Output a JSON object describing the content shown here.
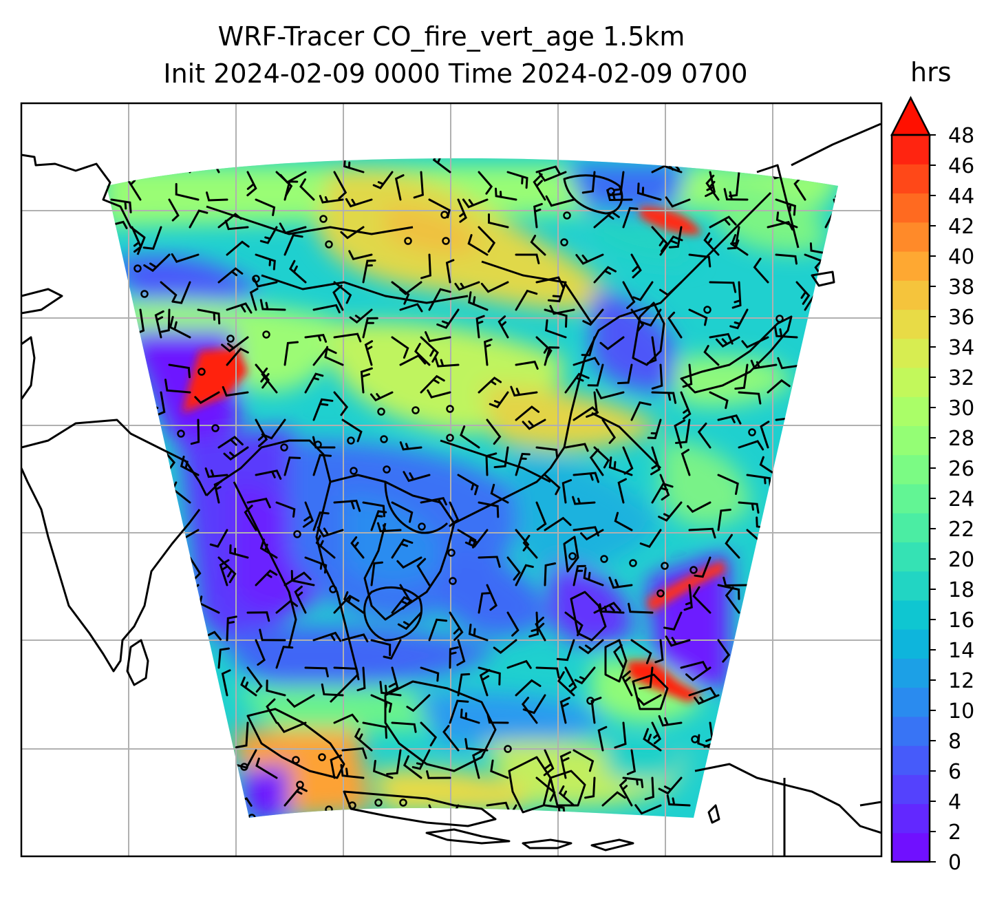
{
  "title": {
    "line1": "WRF-Tracer CO_fire_vert_age 1.5km",
    "line2": "Init 2024-02-09 0000 Time 2024-02-09 0700"
  },
  "colorbar": {
    "unit": "hrs",
    "min": 0,
    "max": 48,
    "step": 2,
    "extend": "max",
    "ticks": [
      "0",
      "2",
      "4",
      "6",
      "8",
      "10",
      "12",
      "14",
      "16",
      "18",
      "20",
      "22",
      "24",
      "26",
      "28",
      "30",
      "32",
      "34",
      "36",
      "38",
      "40",
      "42",
      "44",
      "46",
      "48"
    ],
    "colors": [
      "#7010ff",
      "#6228ff",
      "#5442fd",
      "#465bfa",
      "#3874f5",
      "#2a8bef",
      "#1ca0e6",
      "#0eb5dc",
      "#0fc6d1",
      "#22d5c3",
      "#35e2b4",
      "#4bedA3",
      "#62f594",
      "#7bfb84",
      "#94fe75",
      "#aafe68",
      "#c2f85b",
      "#d7ed51",
      "#e8db46",
      "#f5c43c",
      "#fea832",
      "#ff8a29",
      "#ff6a20",
      "#ff4818",
      "#ff2410"
    ],
    "extend_color": "#ff1000"
  },
  "map": {
    "projection": "lambert-conformal",
    "gridlines": true,
    "coastlines": true,
    "field_name": "CO_fire_vert_age",
    "level": "1.5km",
    "barbs": true
  }
}
